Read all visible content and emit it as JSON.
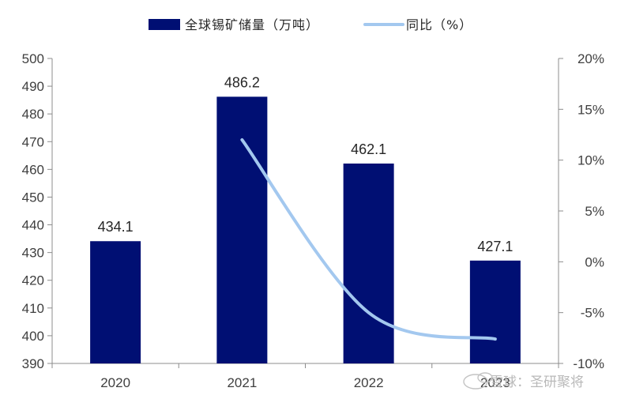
{
  "chart_data": {
    "type": "bar",
    "title": "",
    "categories": [
      "2020",
      "2021",
      "2022",
      "2023"
    ],
    "series": [
      {
        "name": "全球锡矿储量（万吨）",
        "type": "bar",
        "axis": "left",
        "color": "#000f73",
        "values": [
          434.1,
          486.2,
          462.1,
          427.1
        ],
        "labels": [
          "434.1",
          "486.2",
          "462.1",
          "427.1"
        ]
      },
      {
        "name": "同比（%）",
        "type": "line",
        "axis": "right",
        "color": "#a3c8ef",
        "smooth": true,
        "values": [
          null,
          12.0,
          -5.0,
          -7.6
        ]
      }
    ],
    "y_left": {
      "ylim": [
        390,
        500
      ],
      "ticks": [
        "390",
        "400",
        "410",
        "420",
        "430",
        "440",
        "450",
        "460",
        "470",
        "480",
        "490",
        "500"
      ]
    },
    "y_right": {
      "ylim": [
        -10,
        20
      ],
      "ticks": [
        "-10%",
        "-5%",
        "0%",
        "5%",
        "10%",
        "15%",
        "20%"
      ]
    },
    "grid": false,
    "legend": "top-center"
  },
  "watermark": {
    "text": "雪球：圣研聚将"
  }
}
